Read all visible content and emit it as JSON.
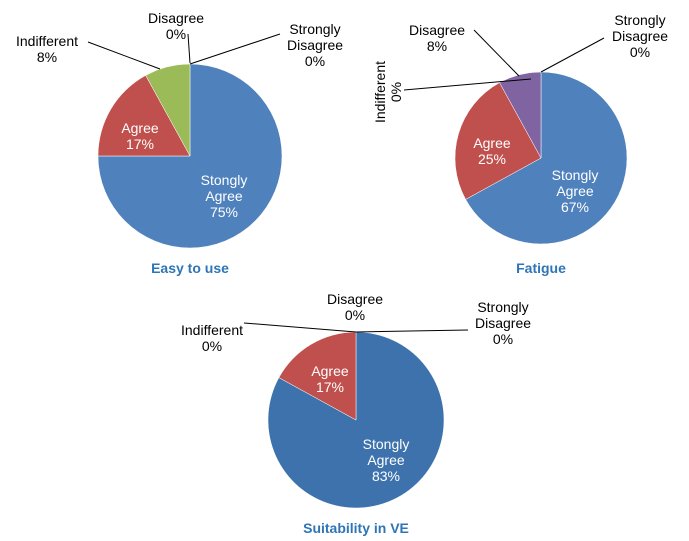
{
  "chart_data": [
    {
      "type": "pie",
      "title": "Easy to use",
      "categories": [
        "Stongly Agree",
        "Agree",
        "Indifferent",
        "Disagree",
        "Strongly Disagree"
      ],
      "values": [
        75,
        17,
        8,
        0,
        0
      ],
      "value_labels": [
        "75%",
        "17%",
        "8%",
        "0%",
        "0%"
      ],
      "colors": [
        "#4f81bd",
        "#c0504d",
        "#9bbb59",
        "#8064a2",
        "#4bacc6"
      ]
    },
    {
      "type": "pie",
      "title": "Fatigue",
      "categories": [
        "Stongly Agree",
        "Agree",
        "Indifferent",
        "Disagree",
        "Strongly Disagree"
      ],
      "values": [
        67,
        25,
        0,
        8,
        0
      ],
      "value_labels": [
        "67%",
        "25%",
        "0%",
        "8%",
        "0%"
      ],
      "colors": [
        "#4f81bd",
        "#c0504d",
        "#9bbb59",
        "#8064a2",
        "#4bacc6"
      ]
    },
    {
      "type": "pie",
      "title": "Suitability in VE",
      "categories": [
        "Stongly Agree",
        "Agree",
        "Indifferent",
        "Disagree",
        "Strongly Disagree"
      ],
      "values": [
        83,
        17,
        0,
        0,
        0
      ],
      "value_labels": [
        "83%",
        "17%",
        "0%",
        "0%",
        "0%"
      ],
      "colors": [
        "#3d72ad",
        "#c0504d",
        "#9bbb59",
        "#8064a2",
        "#4bacc6"
      ]
    }
  ]
}
